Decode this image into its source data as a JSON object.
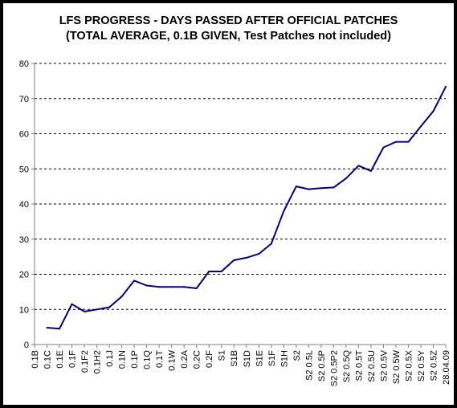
{
  "chart_data": {
    "type": "line",
    "title": "LFS PROGRESS - DAYS PASSED AFTER OFFICIAL PATCHES",
    "subtitle": "(TOTAL AVERAGE, 0.1B GIVEN, Test Patches not included)",
    "xlabel": "",
    "ylabel": "",
    "ylim": [
      0,
      80
    ],
    "yticks": [
      0,
      10,
      20,
      30,
      40,
      50,
      60,
      70,
      80
    ],
    "grid": "horizontal dashed",
    "legend": "none",
    "colors": {
      "line": "#000080",
      "grid": "#000000",
      "axis": "#808080"
    },
    "categories": [
      "0.1B",
      "0.1C",
      "0.1E",
      "0.1F",
      "0.1F2",
      "0.1H2",
      "0.1J",
      "0.1N",
      "0.1P",
      "0.1Q",
      "0.1T",
      "0.1W",
      "0.2A",
      "0.2C",
      "0.2F",
      "S1",
      "S1B",
      "S1D",
      "S1E",
      "S1F",
      "S1H",
      "S2",
      "S2 0.5L",
      "S2 0.5P",
      "S2 0.5P2",
      "S2 0.5Q",
      "S2 0.5T",
      "S2 0.5U",
      "S2 0.5V",
      "S2 0.5W",
      "S2 0.5X",
      "S2 0.5Y",
      "S2 0.5Z",
      "28.04.09"
    ],
    "series": [
      {
        "values": [
          null,
          4.8,
          4.5,
          11.5,
          9.4,
          10.0,
          10.6,
          13.7,
          18.2,
          16.8,
          16.4,
          16.4,
          16.4,
          16.0,
          20.8,
          20.8,
          24.0,
          24.7,
          25.8,
          28.7,
          38.0,
          45.0,
          44.2,
          44.5,
          44.7,
          47.3,
          50.9,
          49.4,
          56.1,
          57.7,
          57.7,
          62.1,
          66.4,
          73.4
        ]
      }
    ]
  }
}
